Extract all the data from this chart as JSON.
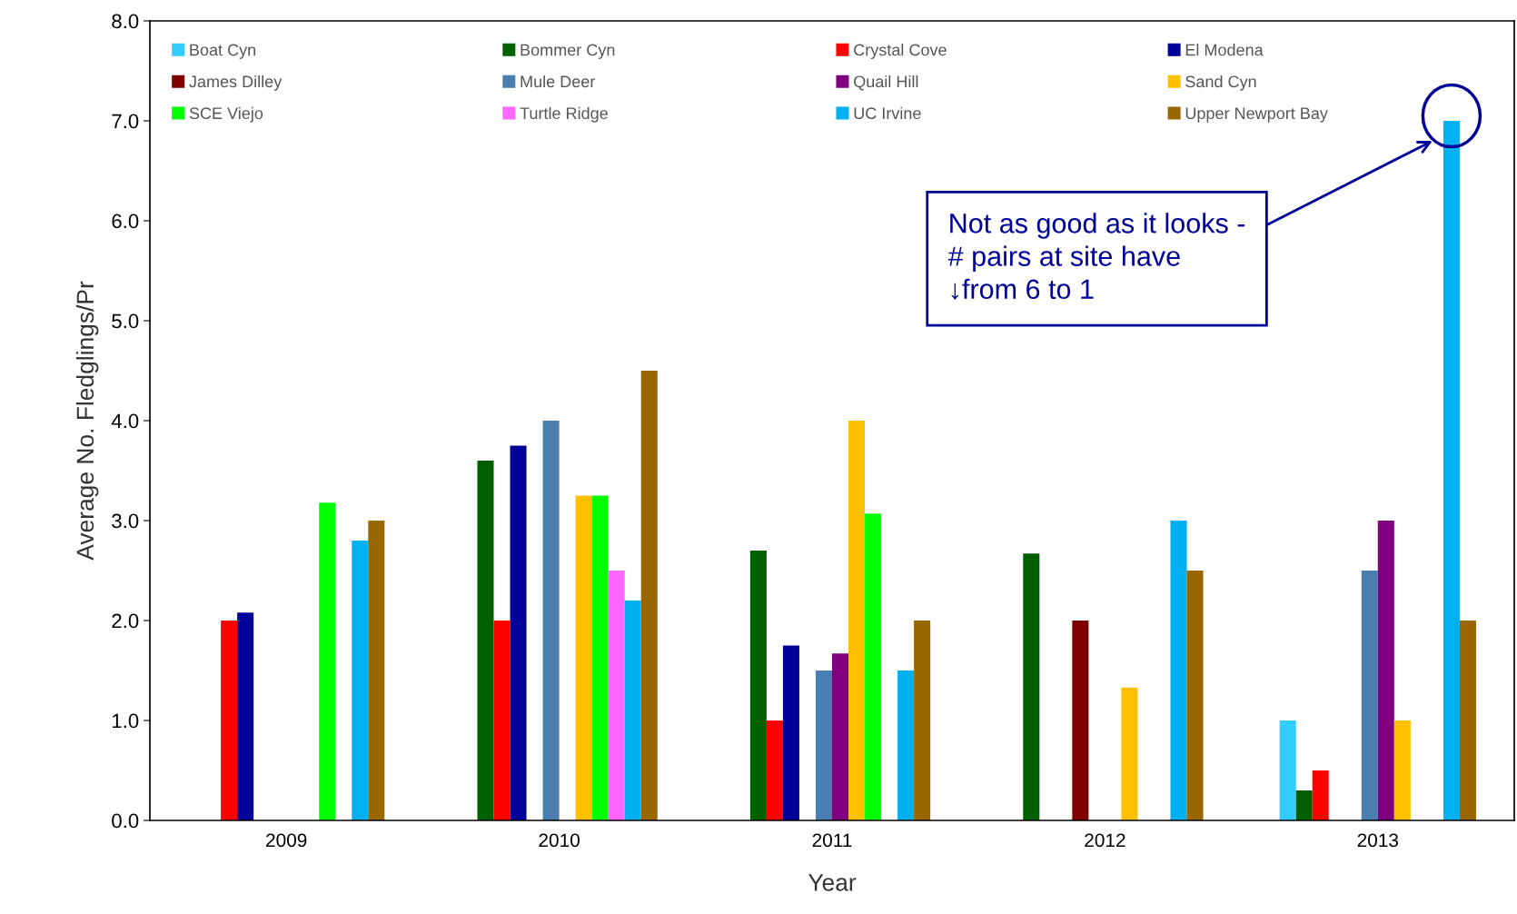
{
  "chart_data": {
    "type": "bar",
    "xlabel": "Year",
    "ylabel": "Average No. Fledglings/Pr",
    "categories": [
      "2009",
      "2010",
      "2011",
      "2012",
      "2013"
    ],
    "series": [
      {
        "name": "Boat Cyn",
        "color": "#33ccff",
        "values": [
          null,
          null,
          null,
          null,
          1.0
        ]
      },
      {
        "name": "Bommer Cyn",
        "color": "#006000",
        "values": [
          null,
          3.6,
          2.7,
          2.67,
          0.3
        ]
      },
      {
        "name": "Crystal Cove",
        "color": "#ff0000",
        "values": [
          2.0,
          2.0,
          1.0,
          null,
          0.5
        ]
      },
      {
        "name": "El Modena",
        "color": "#000099",
        "values": [
          2.08,
          3.75,
          1.75,
          null,
          null
        ]
      },
      {
        "name": "James Dilley",
        "color": "#800000",
        "values": [
          null,
          null,
          null,
          2.0,
          null
        ]
      },
      {
        "name": "Mule Deer",
        "color": "#4a7eb0",
        "values": [
          null,
          4.0,
          1.5,
          null,
          2.5
        ]
      },
      {
        "name": "Quail Hill",
        "color": "#800080",
        "values": [
          null,
          null,
          1.67,
          null,
          3.0
        ]
      },
      {
        "name": "Sand Cyn",
        "color": "#ffc000",
        "values": [
          null,
          3.25,
          4.0,
          1.33,
          1.0
        ]
      },
      {
        "name": "SCE Viejo",
        "color": "#00ff00",
        "values": [
          3.18,
          3.25,
          3.07,
          null,
          null
        ]
      },
      {
        "name": "Turtle Ridge",
        "color": "#ff66ff",
        "values": [
          null,
          2.5,
          null,
          null,
          null
        ]
      },
      {
        "name": "UC Irvine",
        "color": "#00b0f0",
        "values": [
          2.8,
          2.2,
          1.5,
          3.0,
          7.0
        ]
      },
      {
        "name": "Upper Newport Bay",
        "color": "#996600",
        "values": [
          3.0,
          4.5,
          2.0,
          2.5,
          2.0
        ]
      }
    ],
    "ylim": [
      0,
      8
    ],
    "yticks": [
      {
        "value": 0,
        "label": "0.0"
      },
      {
        "value": 1,
        "label": "1.0"
      },
      {
        "value": 2,
        "label": "2.0"
      },
      {
        "value": 3,
        "label": "3.0"
      },
      {
        "value": 4,
        "label": "4.0"
      },
      {
        "value": 5,
        "label": "5.0"
      },
      {
        "value": 6,
        "label": "6.0"
      },
      {
        "value": 7,
        "label": "7.0"
      },
      {
        "value": 8,
        "label": "8.0"
      }
    ],
    "annotations": [
      "Not as good as it looks -\n# pairs at site have\n↓from 6 to 1"
    ],
    "grid": false,
    "legend": "top"
  }
}
